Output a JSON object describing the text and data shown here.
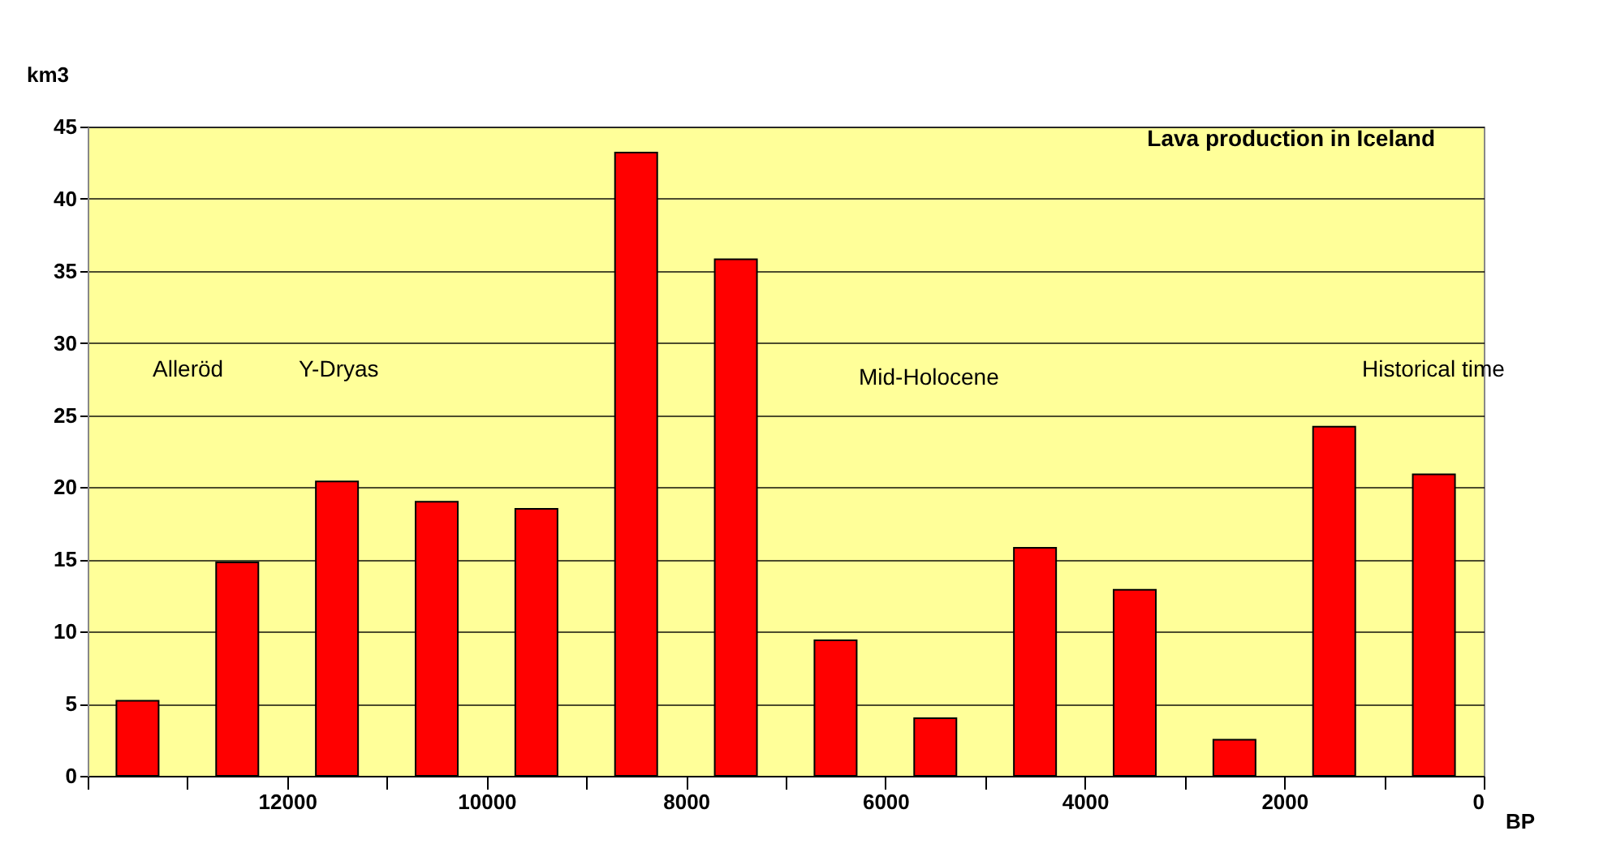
{
  "chart_data": {
    "type": "bar",
    "title": "Lava production in Iceland",
    "xlabel": "BP",
    "ylabel": "km3",
    "x": [
      13500,
      12500,
      11500,
      10500,
      9500,
      8500,
      7500,
      6500,
      5500,
      4500,
      3500,
      2500,
      1500,
      500
    ],
    "series": [
      {
        "color": "#ff0000",
        "values": [
          5.2,
          14.8,
          20.4,
          19.0,
          18.5,
          43.2,
          35.8,
          9.4,
          4.0,
          15.8,
          12.9,
          2.5,
          24.2,
          20.9
        ]
      }
    ],
    "xlim": [
      14000,
      0
    ],
    "xticks": [
      {
        "value": 14000,
        "label": null
      },
      {
        "value": 13000,
        "label": null
      },
      12000,
      {
        "value": 11000,
        "label": null
      },
      10000,
      {
        "value": 9000,
        "label": null
      },
      8000,
      {
        "value": 7000,
        "label": null
      },
      6000,
      {
        "value": 5000,
        "label": null
      },
      4000,
      {
        "value": 3000,
        "label": null
      },
      2000,
      {
        "value": 1000,
        "label": null
      },
      0
    ],
    "ylim": [
      0,
      45
    ],
    "yticks": [
      0,
      5,
      10,
      15,
      20,
      25,
      30,
      35,
      40,
      45
    ],
    "grid": "y",
    "annotations": [
      "Alleröd",
      "Y-Dryas",
      "Mid-Holocene",
      "Historical time"
    ]
  }
}
